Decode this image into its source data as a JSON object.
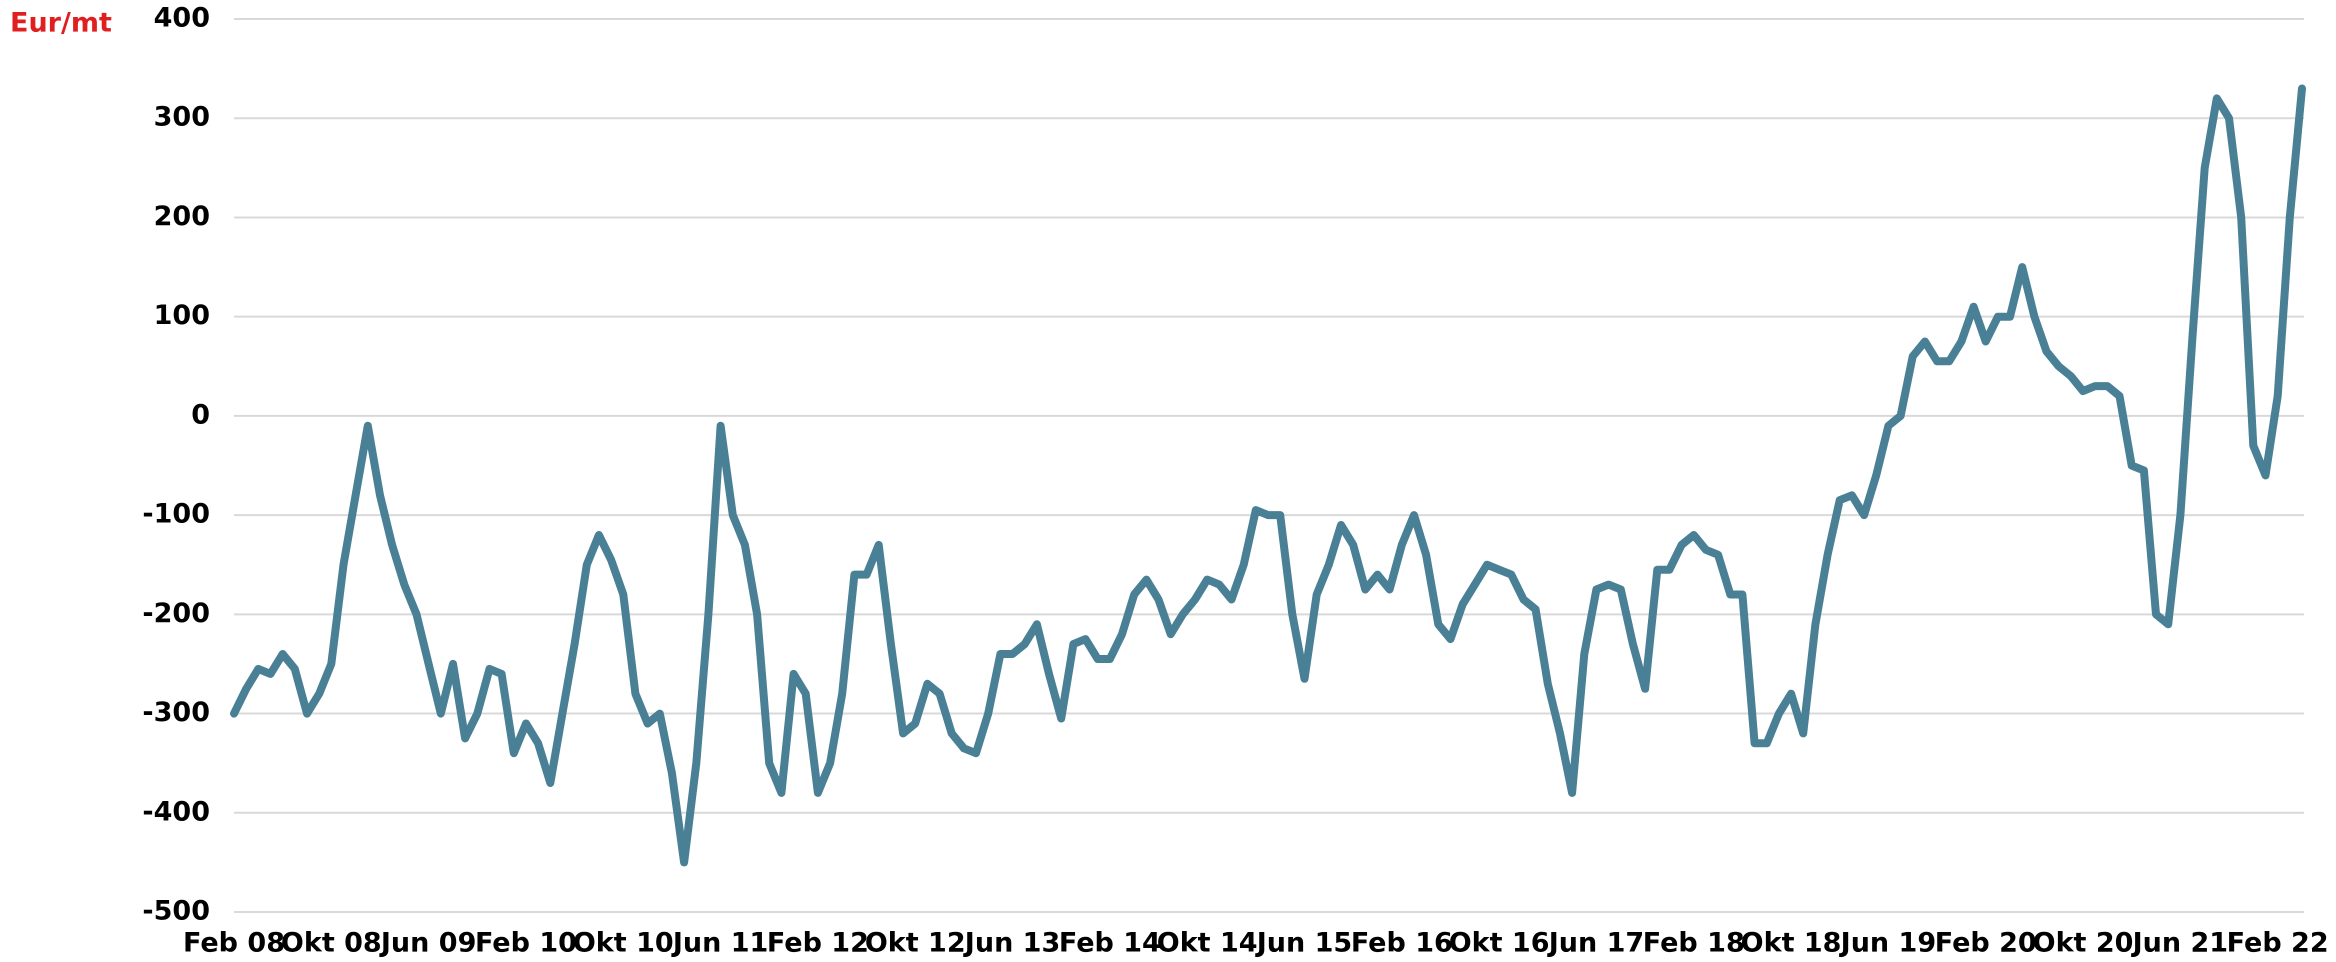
{
  "chart_data": {
    "type": "line",
    "y_label": "Eur/mt",
    "categories": [
      "Feb 08",
      null,
      null,
      null,
      null,
      null,
      null,
      null,
      "Okt 08",
      null,
      null,
      null,
      null,
      null,
      null,
      null,
      "Jun 09",
      null,
      null,
      null,
      null,
      null,
      null,
      null,
      "Feb 10",
      null,
      null,
      null,
      null,
      null,
      null,
      null,
      "Okt 10",
      null,
      null,
      null,
      null,
      null,
      null,
      null,
      "Jun 11",
      null,
      null,
      null,
      null,
      null,
      null,
      null,
      "Feb 12",
      null,
      null,
      null,
      null,
      null,
      null,
      null,
      "Okt 12",
      null,
      null,
      null,
      null,
      null,
      null,
      null,
      "Jun 13",
      null,
      null,
      null,
      null,
      null,
      null,
      null,
      "Feb 14",
      null,
      null,
      null,
      null,
      null,
      null,
      null,
      "Okt 14",
      null,
      null,
      null,
      null,
      null,
      null,
      null,
      "Jun 15",
      null,
      null,
      null,
      null,
      null,
      null,
      null,
      "Feb 16",
      null,
      null,
      null,
      null,
      null,
      null,
      null,
      "Okt 16",
      null,
      null,
      null,
      null,
      null,
      null,
      null,
      "Jun 17",
      null,
      null,
      null,
      null,
      null,
      null,
      null,
      "Feb 18",
      null,
      null,
      null,
      null,
      null,
      null,
      null,
      "Okt 18",
      null,
      null,
      null,
      null,
      null,
      null,
      null,
      "Jun 19",
      null,
      null,
      null,
      null,
      null,
      null,
      null,
      "Feb 20",
      null,
      null,
      null,
      null,
      null,
      null,
      null,
      "Okt 20",
      null,
      null,
      null,
      null,
      null,
      null,
      null,
      "Jun 21",
      null,
      null,
      null,
      null,
      null,
      null,
      null,
      "Feb 22",
      null,
      null
    ],
    "values": [
      -300,
      -275,
      -255,
      -260,
      -240,
      -255,
      -300,
      -280,
      -250,
      -150,
      -80,
      -10,
      -80,
      -130,
      -170,
      -200,
      -250,
      -300,
      -250,
      -325,
      -300,
      -255,
      -260,
      -340,
      -310,
      -330,
      -370,
      -300,
      -230,
      -150,
      -120,
      -145,
      -180,
      -280,
      -310,
      -300,
      -360,
      -450,
      -350,
      -200,
      -10,
      -100,
      -130,
      -200,
      -350,
      -380,
      -260,
      -280,
      -380,
      -350,
      -280,
      -160,
      -160,
      -130,
      -230,
      -320,
      -310,
      -270,
      -280,
      -320,
      -335,
      -340,
      -300,
      -240,
      -240,
      -230,
      -210,
      -260,
      -305,
      -230,
      -225,
      -245,
      -245,
      -220,
      -180,
      -165,
      -185,
      -220,
      -200,
      -185,
      -165,
      -170,
      -185,
      -150,
      -95,
      -100,
      -100,
      -200,
      -265,
      -180,
      -150,
      -110,
      -130,
      -175,
      -160,
      -175,
      -130,
      -100,
      -140,
      -210,
      -225,
      -190,
      -170,
      -150,
      -155,
      -160,
      -185,
      -195,
      -270,
      -320,
      -380,
      -240,
      -175,
      -170,
      -175,
      -230,
      -275,
      -155,
      -155,
      -130,
      -120,
      -135,
      -140,
      -180,
      -180,
      -330,
      -330,
      -300,
      -280,
      -320,
      -210,
      -140,
      -85,
      -80,
      -100,
      -60,
      -10,
      0,
      60,
      75,
      55,
      55,
      75,
      110,
      75,
      100,
      100,
      150,
      100,
      65,
      50,
      40,
      25,
      30,
      30,
      20,
      -50,
      -55,
      -200,
      -210,
      -100,
      80,
      250,
      320,
      300,
      200,
      -30,
      -60,
      20,
      200,
      330
    ],
    "color": "#4a8096",
    "ylim": [
      -500,
      400
    ],
    "yticks": [
      -500,
      -400,
      -300,
      -200,
      -100,
      0,
      100,
      200,
      300,
      400
    ],
    "grid": true
  }
}
